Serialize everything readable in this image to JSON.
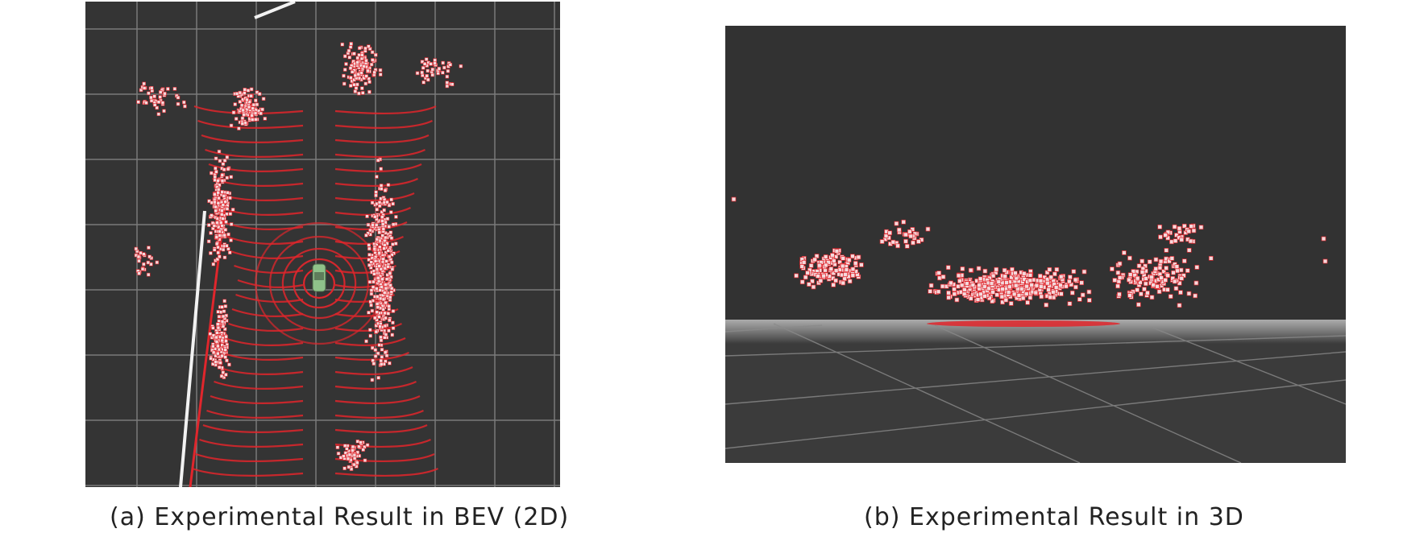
{
  "figure": {
    "panels": [
      {
        "id": "a",
        "view": "bird's-eye view",
        "caption": "(a) Experimental Result in BEV (2D)",
        "background_color": "#343434",
        "grid_color": "#7a7a7a",
        "ground_points_color": "#e0262c",
        "object_points_color": "#f4d9dc",
        "vehicle_color": "#8fc28a"
      },
      {
        "id": "b",
        "view": "3D perspective",
        "caption": "(b) Experimental Result in 3D",
        "background_color": "#323232",
        "ground_plane_color": "#3b3b3b",
        "horizon_color": "#b8b8b8",
        "grid_color": "#8a8a8a",
        "object_points_color": "#f4d9dc"
      }
    ]
  }
}
